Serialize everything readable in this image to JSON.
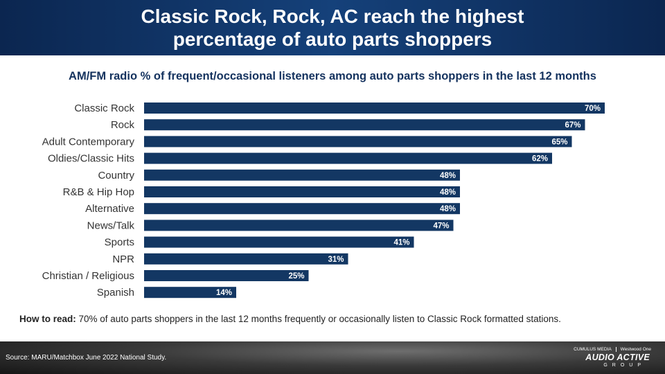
{
  "header": {
    "title": "Classic Rock, Rock, AC reach the highest percentage of auto parts shoppers"
  },
  "chart_data": {
    "type": "bar",
    "orientation": "horizontal",
    "title": "AM/FM radio % of frequent/occasional listeners among auto parts shoppers in the last 12 months",
    "categories": [
      "Classic Rock",
      "Rock",
      "Adult Contemporary",
      "Oldies/Classic Hits",
      "Country",
      "R&B & Hip Hop",
      "Alternative",
      "News/Talk",
      "Sports",
      "NPR",
      "Christian / Religious",
      "Spanish"
    ],
    "values": [
      70,
      67,
      65,
      62,
      48,
      48,
      48,
      47,
      41,
      31,
      25,
      14
    ],
    "value_labels": [
      "70%",
      "67%",
      "65%",
      "62%",
      "48%",
      "48%",
      "48%",
      "47%",
      "41%",
      "31%",
      "25%",
      "14%"
    ],
    "xlim": [
      0,
      100
    ],
    "grid": false,
    "legend": "none",
    "bar_color": "#133763"
  },
  "footnote": {
    "how_to_label": "How to read:",
    "how_to_text": " 70% of auto parts shoppers in the last 12 months frequently or occasionally listen to Classic Rock formatted stations."
  },
  "footer": {
    "source": "Source: MARU/Matchbox June 2022 National Study.",
    "logo_cumulus": "CUMULUS MEDIA",
    "logo_westwood": "Westwood One",
    "logo_main": "AUDIO ACTIVE",
    "logo_sub": "GROUP"
  }
}
